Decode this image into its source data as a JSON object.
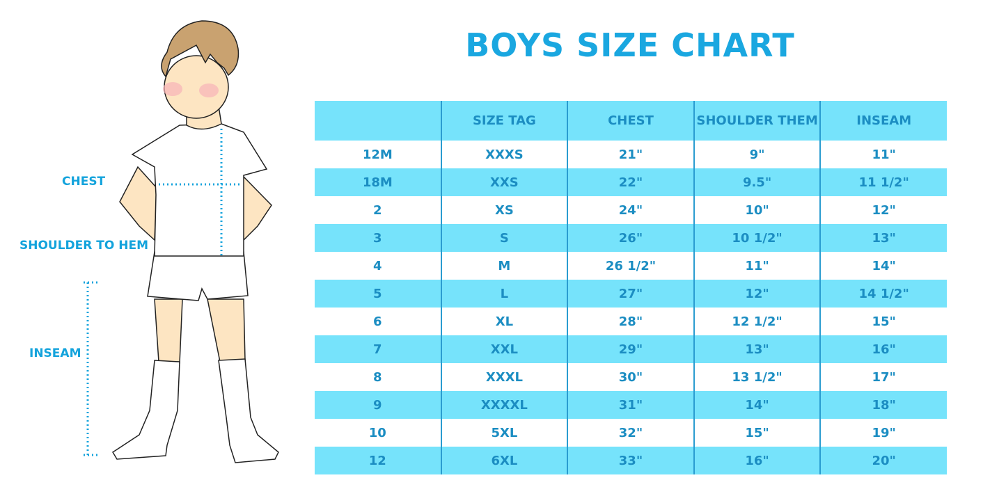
{
  "title": "BOYS SIZE CHART",
  "figure": {
    "labels": {
      "chest": "CHEST",
      "shoulder_to_hem": "SHOULDER TO HEM",
      "inseam": "INSEAM"
    }
  },
  "colors": {
    "header_bg": "#76e3fb",
    "text": "#1b8dc2",
    "title": "#1aa7e0"
  },
  "table": {
    "headers": [
      "",
      "SIZE TAG",
      "CHEST",
      "SHOULDER THEM",
      "INSEAM"
    ],
    "rows": [
      [
        "12M",
        "XXXS",
        "21\"",
        "9\"",
        "11\""
      ],
      [
        "18M",
        "XXS",
        "22\"",
        "9.5\"",
        "11 1/2\""
      ],
      [
        "2",
        "XS",
        "24\"",
        "10\"",
        "12\""
      ],
      [
        "3",
        "S",
        "26\"",
        "10 1/2\"",
        "13\""
      ],
      [
        "4",
        "M",
        "26 1/2\"",
        "11\"",
        "14\""
      ],
      [
        "5",
        "L",
        "27\"",
        "12\"",
        "14 1/2\""
      ],
      [
        "6",
        "XL",
        "28\"",
        "12 1/2\"",
        "15\""
      ],
      [
        "7",
        "XXL",
        "29\"",
        "13\"",
        "16\""
      ],
      [
        "8",
        "XXXL",
        "30\"",
        "13 1/2\"",
        "17\""
      ],
      [
        "9",
        "XXXXL",
        "31\"",
        "14\"",
        "18\""
      ],
      [
        "10",
        "5XL",
        "32\"",
        "15\"",
        "19\""
      ],
      [
        "12",
        "6XL",
        "33\"",
        "16\"",
        "20\""
      ]
    ]
  }
}
